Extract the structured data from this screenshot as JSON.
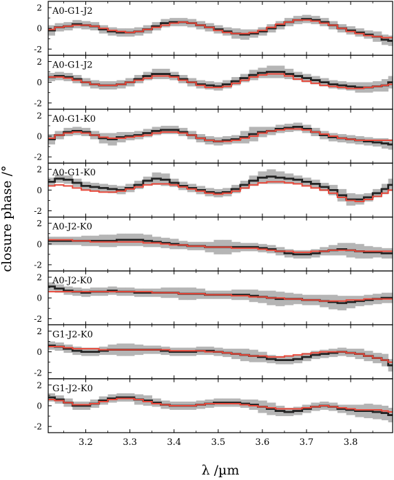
{
  "chart_data": {
    "type": "line",
    "ylabel": "closure phase /°",
    "xlabel": "λ /µm",
    "xlim": [
      3.115,
      3.895
    ],
    "ylim": [
      -2.6,
      2.6
    ],
    "x_ticks": [
      3.2,
      3.3,
      3.4,
      3.5,
      3.6,
      3.7,
      3.8
    ],
    "x_tick_labels": [
      "3.2",
      "3.3",
      "3.4",
      "3.5",
      "3.6",
      "3.7",
      "3.8"
    ],
    "y_ticks": [
      -2,
      0,
      2
    ],
    "y_tick_labels": [
      "-2",
      "0",
      "2"
    ],
    "x": [
      3.12,
      3.14,
      3.16,
      3.18,
      3.2,
      3.22,
      3.24,
      3.26,
      3.28,
      3.3,
      3.32,
      3.34,
      3.36,
      3.38,
      3.4,
      3.42,
      3.44,
      3.46,
      3.48,
      3.5,
      3.52,
      3.54,
      3.56,
      3.58,
      3.6,
      3.62,
      3.64,
      3.66,
      3.68,
      3.7,
      3.72,
      3.74,
      3.76,
      3.78,
      3.8,
      3.82,
      3.84,
      3.86,
      3.88,
      3.89
    ],
    "colors": {
      "observed": "#222222",
      "model": "#e8483a",
      "error": "#b5b5b5"
    },
    "panels": [
      {
        "label": "A0-G1-J2",
        "observed": [
          -0.2,
          0.1,
          0.2,
          0.4,
          0.3,
          0.2,
          -0.1,
          -0.3,
          -0.4,
          -0.4,
          -0.3,
          -0.1,
          0.2,
          0.5,
          0.6,
          0.6,
          0.5,
          0.3,
          0.1,
          -0.1,
          -0.3,
          -0.5,
          -0.6,
          -0.5,
          -0.3,
          0.0,
          0.3,
          0.6,
          0.8,
          0.9,
          0.8,
          0.6,
          0.3,
          0.0,
          -0.2,
          -0.4,
          -0.6,
          -0.8,
          -1.1,
          -1.2
        ],
        "error": [
          0.5,
          0.4,
          0.4,
          0.4,
          0.4,
          0.4,
          0.4,
          0.4,
          0.4,
          0.4,
          0.4,
          0.4,
          0.4,
          0.4,
          0.4,
          0.4,
          0.4,
          0.4,
          0.4,
          0.4,
          0.4,
          0.5,
          0.5,
          0.4,
          0.4,
          0.4,
          0.4,
          0.4,
          0.4,
          0.4,
          0.4,
          0.4,
          0.4,
          0.4,
          0.4,
          0.4,
          0.4,
          0.5,
          0.5,
          0.5
        ],
        "model": [
          -0.1,
          0.1,
          0.2,
          0.3,
          0.3,
          0.2,
          0.0,
          -0.2,
          -0.3,
          -0.4,
          -0.3,
          -0.1,
          0.1,
          0.3,
          0.5,
          0.6,
          0.5,
          0.3,
          0.1,
          -0.2,
          -0.4,
          -0.5,
          -0.5,
          -0.4,
          -0.2,
          0.1,
          0.4,
          0.6,
          0.8,
          0.8,
          0.7,
          0.5,
          0.3,
          0.0,
          -0.3,
          -0.5,
          -0.7,
          -0.8,
          -0.9,
          -0.9
        ]
      },
      {
        "label": "A0-G1-J2",
        "observed": [
          0.5,
          0.6,
          0.5,
          0.3,
          0.0,
          -0.2,
          -0.3,
          -0.3,
          -0.2,
          0.0,
          0.3,
          0.6,
          0.8,
          0.8,
          0.6,
          0.3,
          0.0,
          -0.2,
          -0.3,
          -0.4,
          -0.2,
          0.1,
          0.4,
          0.7,
          0.9,
          1.0,
          1.0,
          0.8,
          0.6,
          0.4,
          0.2,
          0.0,
          -0.2,
          -0.3,
          -0.4,
          -0.5,
          -0.5,
          -0.4,
          -0.3,
          0.0
        ],
        "error": [
          0.4,
          0.4,
          0.4,
          0.4,
          0.4,
          0.4,
          0.4,
          0.4,
          0.4,
          0.4,
          0.4,
          0.4,
          0.5,
          0.5,
          0.4,
          0.4,
          0.4,
          0.4,
          0.4,
          0.4,
          0.4,
          0.4,
          0.4,
          0.5,
          0.5,
          0.6,
          0.6,
          0.5,
          0.4,
          0.4,
          0.4,
          0.4,
          0.4,
          0.4,
          0.4,
          0.5,
          0.5,
          0.5,
          0.6,
          0.6
        ],
        "model": [
          0.5,
          0.5,
          0.4,
          0.2,
          0.0,
          -0.2,
          -0.3,
          -0.3,
          -0.2,
          0.0,
          0.2,
          0.4,
          0.6,
          0.6,
          0.5,
          0.2,
          0.0,
          -0.3,
          -0.5,
          -0.5,
          -0.4,
          -0.1,
          0.2,
          0.5,
          0.7,
          0.8,
          0.8,
          0.6,
          0.3,
          0.1,
          -0.1,
          -0.3,
          -0.4,
          -0.5,
          -0.6,
          -0.6,
          -0.5,
          -0.4,
          -0.3,
          -0.2
        ]
      },
      {
        "label": "A0-G1-K0",
        "observed": [
          -0.3,
          0.1,
          0.4,
          0.5,
          0.4,
          0.1,
          -0.2,
          -0.3,
          -0.1,
          0.0,
          0.1,
          0.3,
          0.5,
          0.6,
          0.6,
          0.4,
          0.1,
          -0.2,
          -0.4,
          -0.5,
          -0.4,
          -0.3,
          -0.1,
          0.2,
          0.4,
          0.5,
          0.7,
          0.8,
          0.9,
          0.7,
          0.4,
          0.1,
          -0.1,
          -0.2,
          -0.3,
          -0.4,
          -0.5,
          -0.6,
          -0.7,
          -0.8
        ],
        "error": [
          0.5,
          0.4,
          0.4,
          0.4,
          0.4,
          0.4,
          0.5,
          0.6,
          0.5,
          0.4,
          0.4,
          0.4,
          0.4,
          0.4,
          0.4,
          0.4,
          0.4,
          0.4,
          0.4,
          0.4,
          0.4,
          0.4,
          0.6,
          0.7,
          0.5,
          0.4,
          0.4,
          0.4,
          0.4,
          0.4,
          0.4,
          0.4,
          0.4,
          0.4,
          0.4,
          0.4,
          0.4,
          0.4,
          0.5,
          0.5
        ],
        "model": [
          -0.2,
          0.1,
          0.3,
          0.4,
          0.3,
          0.1,
          -0.1,
          -0.2,
          -0.2,
          -0.1,
          0.0,
          0.1,
          0.3,
          0.4,
          0.4,
          0.3,
          0.1,
          -0.2,
          -0.4,
          -0.5,
          -0.5,
          -0.4,
          -0.2,
          0.0,
          0.3,
          0.5,
          0.6,
          0.7,
          0.7,
          0.6,
          0.4,
          0.2,
          0.0,
          -0.2,
          -0.3,
          -0.4,
          -0.4,
          -0.4,
          -0.4,
          -0.4
        ]
      },
      {
        "label": "A0-G1-K0",
        "observed": [
          0.8,
          1.1,
          1.0,
          0.7,
          0.4,
          0.3,
          0.2,
          0.1,
          0.0,
          0.2,
          0.5,
          0.9,
          1.1,
          1.0,
          0.7,
          0.4,
          0.2,
          0.0,
          -0.2,
          -0.3,
          -0.2,
          0.1,
          0.5,
          0.9,
          1.2,
          1.3,
          1.2,
          1.1,
          1.0,
          0.8,
          0.6,
          0.3,
          0.0,
          -0.5,
          -0.9,
          -0.9,
          -0.7,
          -0.3,
          0.1,
          0.5
        ],
        "error": [
          0.4,
          0.4,
          0.4,
          0.4,
          0.4,
          0.4,
          0.4,
          0.4,
          0.4,
          0.4,
          0.4,
          0.4,
          0.6,
          0.6,
          0.4,
          0.4,
          0.4,
          0.4,
          0.4,
          0.4,
          0.4,
          0.4,
          0.4,
          0.5,
          0.6,
          0.7,
          0.6,
          0.5,
          0.4,
          0.4,
          0.4,
          0.4,
          0.5,
          0.6,
          0.6,
          0.5,
          0.4,
          0.4,
          0.5,
          0.6
        ],
        "model": [
          0.4,
          0.5,
          0.4,
          0.2,
          0.0,
          -0.1,
          -0.2,
          -0.2,
          -0.1,
          0.1,
          0.3,
          0.5,
          0.6,
          0.6,
          0.5,
          0.3,
          0.1,
          -0.1,
          -0.3,
          -0.4,
          -0.3,
          -0.1,
          0.2,
          0.5,
          0.7,
          0.8,
          0.8,
          0.7,
          0.6,
          0.4,
          0.2,
          0.0,
          -0.3,
          -0.7,
          -1.0,
          -1.1,
          -0.9,
          -0.6,
          -0.3,
          0.0
        ]
      },
      {
        "label": "A0-J2-K0",
        "observed": [
          0.3,
          0.3,
          0.3,
          0.3,
          0.3,
          0.3,
          0.3,
          0.3,
          0.4,
          0.4,
          0.4,
          0.3,
          0.2,
          0.1,
          0.0,
          -0.1,
          -0.2,
          -0.2,
          -0.3,
          -0.3,
          -0.3,
          -0.3,
          -0.3,
          -0.3,
          -0.4,
          -0.5,
          -0.7,
          -0.9,
          -1.0,
          -1.0,
          -0.9,
          -0.7,
          -0.6,
          -0.5,
          -0.6,
          -0.7,
          -0.8,
          -0.8,
          -0.9,
          -0.9
        ],
        "error": [
          0.4,
          0.4,
          0.4,
          0.4,
          0.5,
          0.5,
          0.6,
          0.6,
          0.6,
          0.6,
          0.6,
          0.6,
          0.5,
          0.5,
          0.5,
          0.4,
          0.4,
          0.4,
          0.5,
          0.7,
          0.7,
          0.5,
          0.4,
          0.4,
          0.4,
          0.4,
          0.4,
          0.4,
          0.4,
          0.4,
          0.4,
          0.4,
          0.5,
          0.6,
          0.7,
          0.7,
          0.6,
          0.5,
          0.5,
          0.5
        ],
        "model": [
          0.4,
          0.4,
          0.4,
          0.3,
          0.3,
          0.2,
          0.2,
          0.2,
          0.2,
          0.2,
          0.2,
          0.1,
          0.1,
          0.0,
          -0.1,
          -0.1,
          -0.2,
          -0.2,
          -0.3,
          -0.3,
          -0.3,
          -0.4,
          -0.4,
          -0.4,
          -0.5,
          -0.6,
          -0.7,
          -0.7,
          -0.8,
          -0.8,
          -0.7,
          -0.7,
          -0.6,
          -0.6,
          -0.6,
          -0.7,
          -0.7,
          -0.7,
          -0.7,
          -0.7
        ]
      },
      {
        "label": "A0-J2-K0",
        "observed": [
          1.1,
          0.9,
          0.7,
          0.6,
          0.5,
          0.6,
          0.6,
          0.7,
          0.6,
          0.6,
          0.5,
          0.5,
          0.5,
          0.5,
          0.5,
          0.4,
          0.4,
          0.4,
          0.3,
          0.3,
          0.3,
          0.3,
          0.3,
          0.2,
          0.1,
          0.0,
          -0.1,
          -0.1,
          -0.1,
          -0.2,
          -0.2,
          -0.3,
          -0.4,
          -0.5,
          -0.4,
          -0.3,
          -0.2,
          -0.1,
          0.0,
          0.0
        ],
        "error": [
          0.4,
          0.4,
          0.4,
          0.4,
          0.4,
          0.4,
          0.4,
          0.4,
          0.4,
          0.4,
          0.4,
          0.4,
          0.4,
          0.5,
          0.5,
          0.6,
          0.6,
          0.5,
          0.4,
          0.4,
          0.4,
          0.5,
          0.5,
          0.6,
          0.6,
          0.7,
          0.7,
          0.6,
          0.5,
          0.5,
          0.5,
          0.6,
          0.7,
          0.7,
          0.6,
          0.5,
          0.5,
          0.5,
          0.5,
          0.5
        ],
        "model": [
          0.6,
          0.6,
          0.6,
          0.6,
          0.6,
          0.6,
          0.6,
          0.6,
          0.6,
          0.6,
          0.6,
          0.6,
          0.5,
          0.5,
          0.5,
          0.4,
          0.4,
          0.4,
          0.3,
          0.3,
          0.3,
          0.2,
          0.2,
          0.1,
          0.1,
          0.0,
          0.0,
          -0.1,
          -0.1,
          -0.2,
          -0.2,
          -0.3,
          -0.3,
          -0.3,
          -0.2,
          -0.2,
          -0.1,
          -0.1,
          -0.1,
          -0.1
        ]
      },
      {
        "label": "G1-J2-K0",
        "observed": [
          0.6,
          0.5,
          0.3,
          0.1,
          0.0,
          0.0,
          0.1,
          0.2,
          0.2,
          0.2,
          0.2,
          0.2,
          0.2,
          0.1,
          0.0,
          0.0,
          0.0,
          0.1,
          0.1,
          0.0,
          -0.1,
          -0.2,
          -0.3,
          -0.4,
          -0.5,
          -0.7,
          -0.8,
          -0.8,
          -0.7,
          -0.5,
          -0.3,
          -0.2,
          -0.1,
          0.0,
          -0.1,
          -0.2,
          -0.4,
          -0.6,
          -0.8,
          -1.3
        ],
        "error": [
          0.4,
          0.4,
          0.4,
          0.4,
          0.4,
          0.4,
          0.4,
          0.5,
          0.6,
          0.6,
          0.5,
          0.4,
          0.4,
          0.4,
          0.4,
          0.4,
          0.4,
          0.4,
          0.4,
          0.4,
          0.4,
          0.5,
          0.6,
          0.6,
          0.5,
          0.4,
          0.4,
          0.4,
          0.4,
          0.4,
          0.4,
          0.4,
          0.4,
          0.4,
          0.4,
          0.5,
          0.5,
          0.5,
          0.6,
          0.6
        ],
        "model": [
          0.5,
          0.5,
          0.4,
          0.3,
          0.3,
          0.3,
          0.2,
          0.2,
          0.2,
          0.2,
          0.2,
          0.2,
          0.2,
          0.2,
          0.1,
          0.1,
          0.1,
          0.1,
          0.0,
          0.0,
          -0.1,
          -0.2,
          -0.3,
          -0.4,
          -0.4,
          -0.5,
          -0.5,
          -0.4,
          -0.3,
          -0.2,
          -0.1,
          0.0,
          0.0,
          0.0,
          -0.1,
          -0.2,
          -0.4,
          -0.6,
          -0.8,
          -1.0
        ]
      },
      {
        "label": "G1-J2-K0",
        "observed": [
          0.8,
          0.6,
          0.3,
          0.0,
          0.0,
          0.2,
          0.5,
          0.7,
          0.8,
          0.8,
          0.6,
          0.5,
          0.3,
          0.1,
          0.0,
          0.0,
          0.0,
          0.1,
          0.2,
          0.3,
          0.3,
          0.3,
          0.2,
          0.1,
          -0.1,
          -0.3,
          -0.5,
          -0.6,
          -0.5,
          -0.3,
          -0.1,
          0.0,
          -0.1,
          -0.3,
          -0.4,
          -0.5,
          -0.5,
          -0.6,
          -0.7,
          -0.9
        ],
        "error": [
          0.4,
          0.4,
          0.4,
          0.4,
          0.4,
          0.4,
          0.4,
          0.4,
          0.4,
          0.4,
          0.5,
          0.5,
          0.4,
          0.4,
          0.4,
          0.4,
          0.4,
          0.4,
          0.4,
          0.4,
          0.4,
          0.4,
          0.4,
          0.5,
          0.6,
          0.6,
          0.5,
          0.4,
          0.4,
          0.4,
          0.4,
          0.4,
          0.4,
          0.4,
          0.5,
          0.6,
          0.7,
          0.7,
          0.7,
          0.7
        ],
        "model": [
          0.6,
          0.5,
          0.3,
          0.1,
          0.1,
          0.2,
          0.4,
          0.6,
          0.7,
          0.7,
          0.6,
          0.4,
          0.2,
          0.1,
          0.0,
          0.0,
          0.0,
          0.1,
          0.2,
          0.2,
          0.2,
          0.2,
          0.1,
          0.0,
          -0.1,
          -0.2,
          -0.3,
          -0.3,
          -0.3,
          -0.2,
          -0.1,
          0.0,
          -0.1,
          -0.2,
          -0.3,
          -0.4,
          -0.4,
          -0.4,
          -0.5,
          -0.6
        ]
      }
    ]
  }
}
